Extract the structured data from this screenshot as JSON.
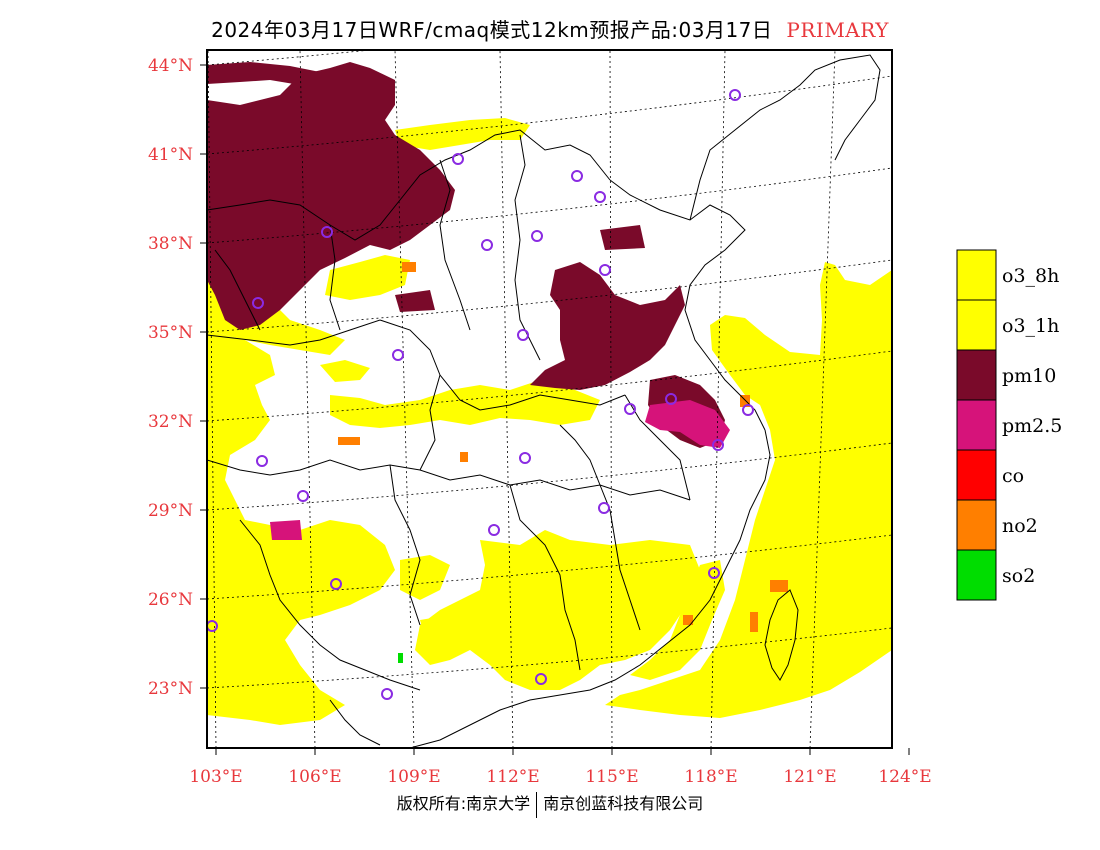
{
  "title": {
    "main": "2024年03月17日WRF/cmaq模式12km预报产品:03月17日",
    "tag": "PRIMARY"
  },
  "axes": {
    "lat_labels": [
      "23°N",
      "26°N",
      "29°N",
      "32°N",
      "35°N",
      "38°N",
      "41°N",
      "44°N"
    ],
    "lat_values": [
      23,
      26,
      29,
      32,
      35,
      38,
      41,
      44
    ],
    "lon_labels": [
      "103°E",
      "106°E",
      "109°E",
      "112°E",
      "115°E",
      "118°E",
      "121°E",
      "124°E"
    ],
    "lon_values": [
      103,
      106,
      109,
      112,
      115,
      118,
      121,
      124
    ],
    "label_color": "#e8383d"
  },
  "legend": {
    "items": [
      {
        "label": "o3_8h",
        "color": "#ffff00"
      },
      {
        "label": "o3_1h",
        "color": "#ffff00"
      },
      {
        "label": "pm10",
        "color": "#7a0a2a"
      },
      {
        "label": "pm2.5",
        "color": "#d6137a"
      },
      {
        "label": "co",
        "color": "#ff0000"
      },
      {
        "label": "no2",
        "color": "#ff7f00"
      },
      {
        "label": "so2",
        "color": "#00dd00"
      }
    ]
  },
  "footer": {
    "left": "版权所有:南京大学",
    "right": "南京创蓝科技有限公司"
  }
}
